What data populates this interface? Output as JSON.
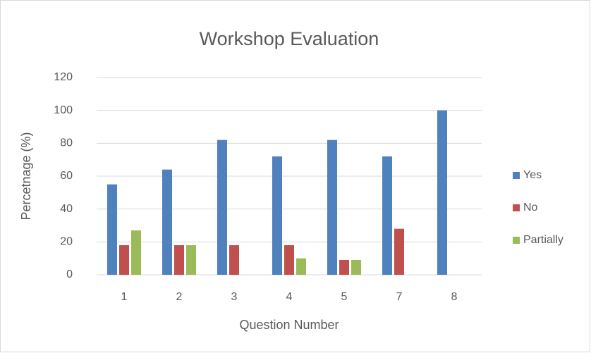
{
  "chart_data": {
    "type": "bar",
    "title": "Workshop Evaluation",
    "x_label": "Question Number",
    "y_label": "Percetnage (%)",
    "categories": [
      "1",
      "2",
      "3",
      "4",
      "5",
      "7",
      "8"
    ],
    "series": [
      {
        "name": "Yes",
        "color": "#4f81bd",
        "values": [
          55,
          64,
          82,
          72,
          82,
          72,
          100
        ]
      },
      {
        "name": "No",
        "color": "#c0504d",
        "values": [
          18,
          18,
          18,
          18,
          9,
          28,
          0
        ]
      },
      {
        "name": "Partially",
        "color": "#9bbb59",
        "values": [
          27,
          18,
          0,
          10,
          9,
          0,
          0
        ]
      }
    ],
    "ylim": [
      0,
      120
    ],
    "yticks": [
      0,
      20,
      40,
      60,
      80,
      100,
      120
    ],
    "grid": true,
    "legend": "right"
  }
}
